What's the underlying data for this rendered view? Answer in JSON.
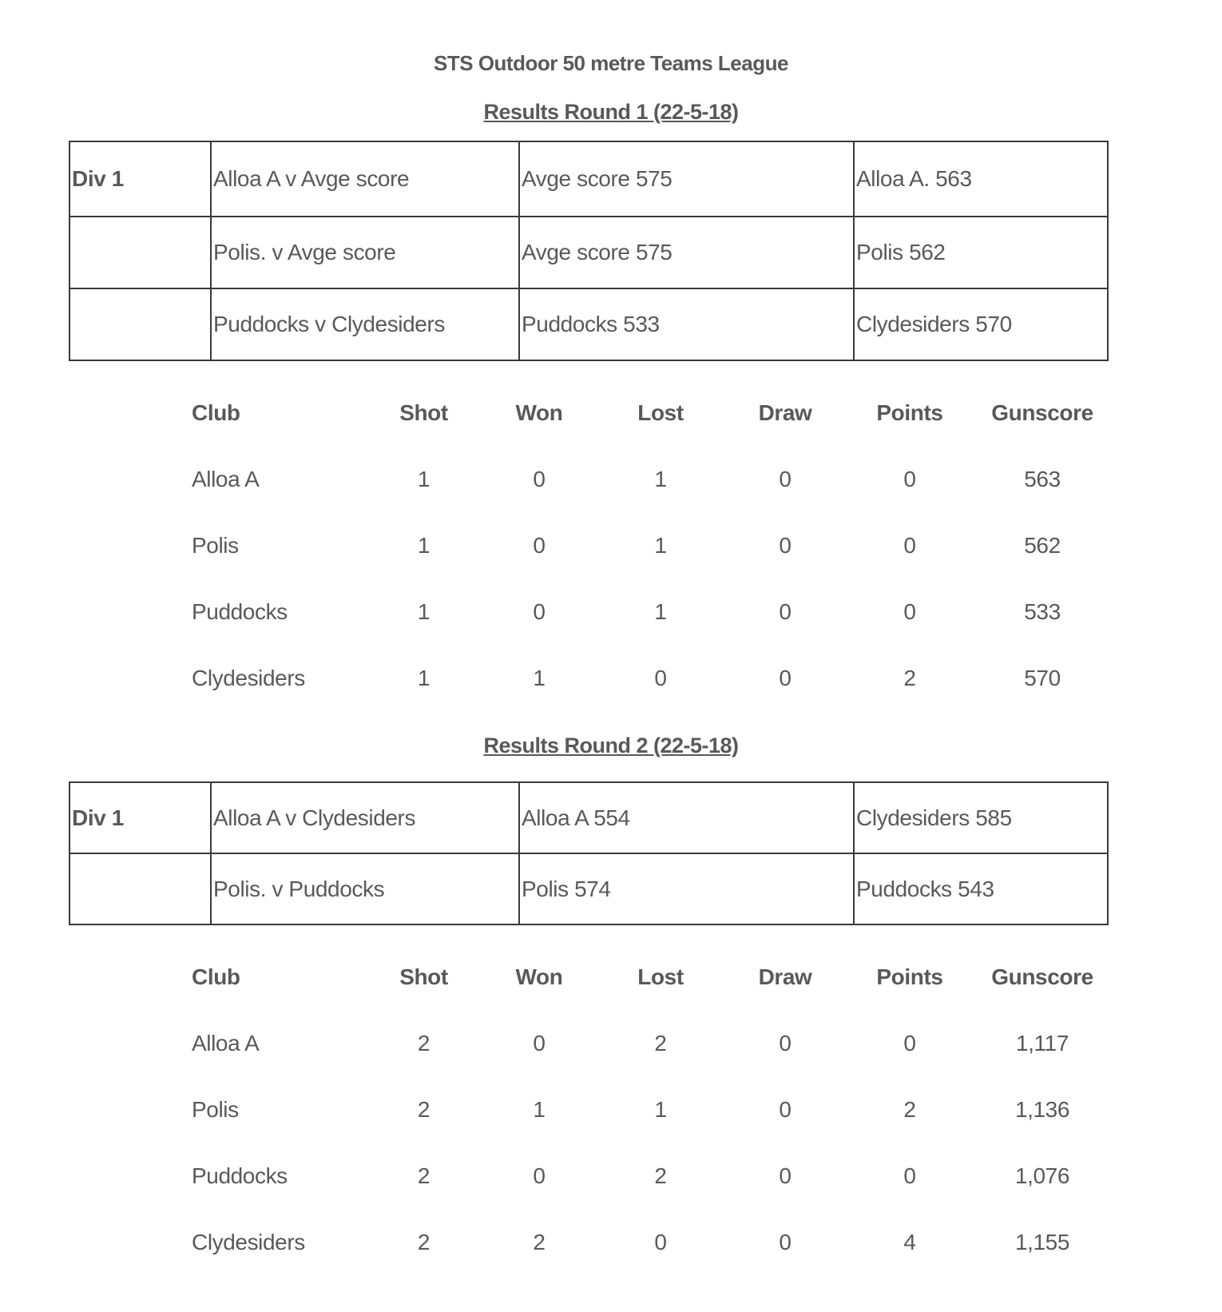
{
  "title": "STS Outdoor 50 metre Teams League",
  "colors": {
    "text": "#58595b",
    "table_border": "#3a3a3a",
    "background": "#ffffff"
  },
  "round1": {
    "heading": "Results Round 1 (22-5-18)",
    "matches": [
      {
        "division": "Div 1",
        "fixture": "Alloa A v Avge score",
        "home_score": "Avge score 575",
        "away_score": "Alloa A. 563"
      },
      {
        "division": "",
        "fixture": "Polis. v Avge score",
        "home_score": "Avge score 575",
        "away_score": "Polis 562"
      },
      {
        "division": "",
        "fixture": "Puddocks v Clydesiders",
        "home_score": "Puddocks 533",
        "away_score": "Clydesiders 570"
      }
    ],
    "standings": {
      "headers": [
        "Club",
        "Shot",
        "Won",
        "Lost",
        "Draw",
        "Points",
        "Gunscore"
      ],
      "rows": [
        [
          "Alloa A",
          "1",
          "0",
          "1",
          "0",
          "0",
          "563"
        ],
        [
          "Polis",
          "1",
          "0",
          "1",
          "0",
          "0",
          "562"
        ],
        [
          "Puddocks",
          "1",
          "0",
          "1",
          "0",
          "0",
          "533"
        ],
        [
          "Clydesiders",
          "1",
          "1",
          "0",
          "0",
          "2",
          "570"
        ]
      ]
    }
  },
  "round2": {
    "heading": "Results Round 2 (22-5-18)",
    "matches": [
      {
        "division": "Div 1",
        "fixture": "Alloa A v Clydesiders",
        "home_score": "Alloa A 554",
        "away_score": "Clydesiders 585"
      },
      {
        "division": "",
        "fixture": "Polis. v Puddocks",
        "home_score": "Polis 574",
        "away_score": "Puddocks 543"
      }
    ],
    "standings": {
      "headers": [
        "Club",
        "Shot",
        "Won",
        "Lost",
        "Draw",
        "Points",
        "Gunscore"
      ],
      "rows": [
        [
          "Alloa A",
          "2",
          "0",
          "2",
          "0",
          "0",
          "1,117"
        ],
        [
          "Polis",
          "2",
          "1",
          "1",
          "0",
          "2",
          "1,136"
        ],
        [
          "Puddocks",
          "2",
          "0",
          "2",
          "0",
          "0",
          "1,076"
        ],
        [
          "Clydesiders",
          "2",
          "2",
          "0",
          "0",
          "4",
          "1,155"
        ]
      ]
    }
  }
}
